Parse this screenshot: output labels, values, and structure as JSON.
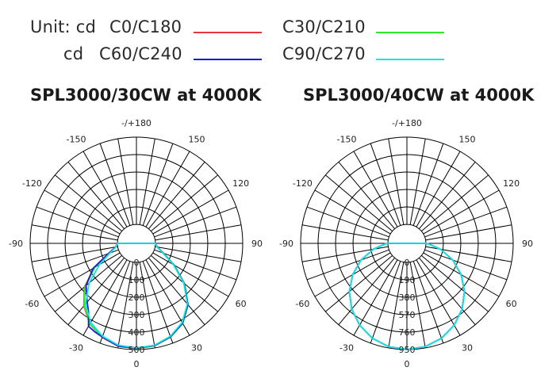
{
  "legend": {
    "unit_label": "Unit: cd",
    "cd_label": "cd",
    "entries": [
      {
        "label": "C0/C180",
        "color": "#e8343c"
      },
      {
        "label": "C30/C210",
        "color": "#2ee82e"
      },
      {
        "label": "C60/C240",
        "color": "#1a1ad6"
      },
      {
        "label": "C90/C270",
        "color": "#14e6e6"
      }
    ]
  },
  "chart_data": [
    {
      "type": "polar",
      "title": "SPL3000/30CW at 4000K",
      "angle_labels": [
        "-/+180",
        "150",
        "120",
        "90",
        "60",
        "30",
        "0",
        "-30",
        "-60",
        "-90",
        "-120",
        "-150"
      ],
      "radial_ticks": [
        "0",
        "100",
        "200",
        "300",
        "400",
        "500"
      ],
      "rmax": 500,
      "series": [
        {
          "name": "C0/C180",
          "color": "#e8343c",
          "points": [
            [
              0,
              494
            ],
            [
              10,
              488
            ],
            [
              20,
              462
            ],
            [
              30,
              420
            ],
            [
              40,
              350
            ],
            [
              50,
              250
            ],
            [
              60,
              140
            ],
            [
              70,
              55
            ],
            [
              80,
              12
            ],
            [
              90,
              0
            ],
            [
              -90,
              0
            ],
            [
              -80,
              12
            ],
            [
              -70,
              60
            ],
            [
              -60,
              170
            ],
            [
              -50,
              280
            ],
            [
              -40,
              360
            ],
            [
              -30,
              425
            ],
            [
              -20,
              465
            ],
            [
              -10,
              490
            ]
          ]
        },
        {
          "name": "C30/C210",
          "color": "#2ee82e",
          "points": [
            [
              0,
              493
            ],
            [
              10,
              487
            ],
            [
              20,
              463
            ],
            [
              30,
              422
            ],
            [
              40,
              352
            ],
            [
              50,
              252
            ],
            [
              60,
              142
            ],
            [
              70,
              56
            ],
            [
              80,
              12
            ],
            [
              90,
              0
            ],
            [
              -90,
              0
            ],
            [
              -80,
              12
            ],
            [
              -70,
              58
            ],
            [
              -60,
              165
            ],
            [
              -50,
              275
            ],
            [
              -40,
              356
            ],
            [
              -30,
              424
            ],
            [
              -20,
              463
            ],
            [
              -10,
              489
            ]
          ]
        },
        {
          "name": "C60/C240",
          "color": "#1a1ad6",
          "points": [
            [
              0,
              492
            ],
            [
              10,
              486
            ],
            [
              20,
              461
            ],
            [
              30,
              419
            ],
            [
              40,
              349
            ],
            [
              50,
              249
            ],
            [
              60,
              139
            ],
            [
              70,
              54
            ],
            [
              80,
              12
            ],
            [
              90,
              0
            ],
            [
              -90,
              0
            ],
            [
              -80,
              12
            ],
            [
              -70,
              62
            ],
            [
              -60,
              178
            ],
            [
              -50,
              268
            ],
            [
              -40,
              330
            ],
            [
              -35,
              370
            ],
            [
              -30,
              440
            ],
            [
              -25,
              452
            ],
            [
              -20,
              462
            ],
            [
              -10,
              489
            ]
          ]
        },
        {
          "name": "C90/C270",
          "color": "#14e6e6",
          "points": [
            [
              0,
              490
            ],
            [
              10,
              484
            ],
            [
              20,
              458
            ],
            [
              30,
              415
            ],
            [
              40,
              345
            ],
            [
              50,
              245
            ],
            [
              60,
              135
            ],
            [
              70,
              52
            ],
            [
              80,
              11
            ],
            [
              90,
              0
            ],
            [
              -90,
              0
            ],
            [
              -80,
              11
            ],
            [
              -70,
              52
            ],
            [
              -60,
              135
            ],
            [
              -50,
              245
            ],
            [
              -40,
              345
            ],
            [
              -30,
              415
            ],
            [
              -20,
              458
            ],
            [
              -10,
              484
            ]
          ]
        }
      ]
    },
    {
      "type": "polar",
      "title": "SPL3000/40CW at 4000K",
      "angle_labels": [
        "-/+180",
        "150",
        "120",
        "90",
        "60",
        "30",
        "0",
        "-30",
        "-60",
        "-90",
        "-120",
        "-150"
      ],
      "radial_ticks": [
        "0",
        "190",
        "380",
        "570",
        "760",
        "950"
      ],
      "rmax": 950,
      "series": [
        {
          "name": "C0/C180",
          "color": "#e8343c",
          "points": [
            [
              0,
              950
            ],
            [
              10,
              936
            ],
            [
              20,
              893
            ],
            [
              30,
              823
            ],
            [
              40,
              728
            ],
            [
              50,
              611
            ],
            [
              60,
              475
            ],
            [
              70,
              325
            ],
            [
              80,
              165
            ],
            [
              88,
              35
            ],
            [
              90,
              0
            ],
            [
              -90,
              0
            ],
            [
              -88,
              35
            ],
            [
              -80,
              165
            ],
            [
              -70,
              325
            ],
            [
              -60,
              475
            ],
            [
              -50,
              611
            ],
            [
              -40,
              728
            ],
            [
              -30,
              823
            ],
            [
              -20,
              893
            ],
            [
              -10,
              936
            ]
          ]
        },
        {
          "name": "C30/C210",
          "color": "#2ee82e",
          "points": [
            [
              0,
              950
            ],
            [
              10,
              936
            ],
            [
              20,
              893
            ],
            [
              30,
              823
            ],
            [
              40,
              728
            ],
            [
              50,
              611
            ],
            [
              60,
              475
            ],
            [
              70,
              325
            ],
            [
              80,
              165
            ],
            [
              88,
              35
            ],
            [
              90,
              0
            ],
            [
              -90,
              0
            ],
            [
              -88,
              35
            ],
            [
              -80,
              165
            ],
            [
              -70,
              325
            ],
            [
              -60,
              475
            ],
            [
              -50,
              611
            ],
            [
              -40,
              728
            ],
            [
              -30,
              823
            ],
            [
              -20,
              893
            ],
            [
              -10,
              936
            ]
          ]
        },
        {
          "name": "C60/C240",
          "color": "#1a1ad6",
          "points": [
            [
              0,
              950
            ],
            [
              10,
              936
            ],
            [
              20,
              893
            ],
            [
              30,
              823
            ],
            [
              40,
              728
            ],
            [
              50,
              611
            ],
            [
              60,
              475
            ],
            [
              70,
              325
            ],
            [
              80,
              165
            ],
            [
              88,
              35
            ],
            [
              90,
              0
            ],
            [
              -90,
              0
            ],
            [
              -88,
              35
            ],
            [
              -80,
              165
            ],
            [
              -70,
              325
            ],
            [
              -60,
              475
            ],
            [
              -50,
              611
            ],
            [
              -40,
              728
            ],
            [
              -30,
              823
            ],
            [
              -20,
              893
            ],
            [
              -10,
              936
            ]
          ]
        },
        {
          "name": "C90/C270",
          "color": "#14e6e6",
          "points": [
            [
              0,
              950
            ],
            [
              10,
              936
            ],
            [
              20,
              893
            ],
            [
              30,
              823
            ],
            [
              40,
              728
            ],
            [
              50,
              611
            ],
            [
              60,
              475
            ],
            [
              70,
              325
            ],
            [
              80,
              165
            ],
            [
              88,
              35
            ],
            [
              90,
              0
            ],
            [
              -90,
              0
            ],
            [
              -88,
              35
            ],
            [
              -80,
              165
            ],
            [
              -70,
              325
            ],
            [
              -60,
              475
            ],
            [
              -50,
              611
            ],
            [
              -40,
              728
            ],
            [
              -30,
              823
            ],
            [
              -20,
              893
            ],
            [
              -10,
              936
            ]
          ]
        }
      ]
    }
  ]
}
